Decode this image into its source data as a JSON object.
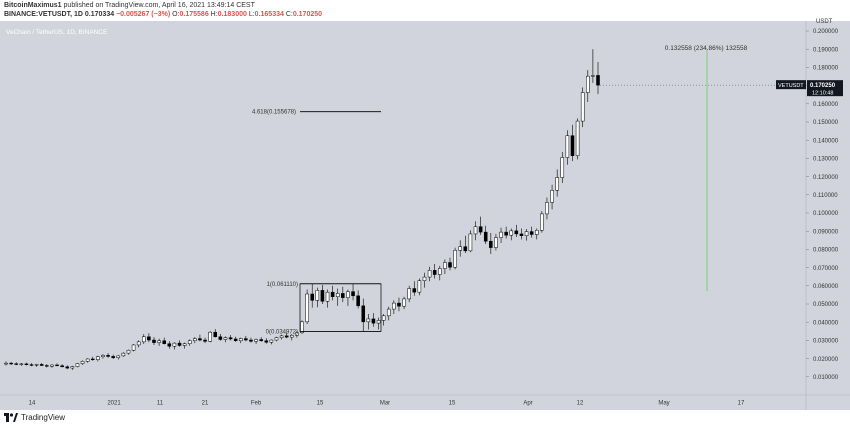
{
  "header": {
    "author": "BitcoinMaximus1",
    "published_on": "published on TradingView.com, April 16, 2021 13:49:14 CEST",
    "symbol_line": "BINANCE:VETUSDT, 1D",
    "last": "0.170334",
    "change": "−0.005267 (−3%)",
    "o": "0.175586",
    "h": "0.183000",
    "l": "0.165334",
    "c": "0.170250"
  },
  "footer": {
    "logo_text": "TradingView"
  },
  "chart_data": {
    "type": "candlestick",
    "title": "VeChain / TetherUS, 1D, BINANCE",
    "y_axis": {
      "unit": "USDT",
      "ticks": [
        "0.200000",
        "0.190000",
        "0.180000",
        "0.170000",
        "0.160000",
        "0.150000",
        "0.140000",
        "0.130000",
        "0.120000",
        "0.110000",
        "0.100000",
        "0.090000",
        "0.080000",
        "0.070000",
        "0.060000",
        "0.050000",
        "0.040000",
        "0.030000",
        "0.020000",
        "0.010000"
      ],
      "range": [
        0.0,
        0.205
      ]
    },
    "x_axis": {
      "ticks": [
        "14",
        "2021",
        "11",
        "21",
        "Feb",
        "15",
        "Mar",
        "15",
        "Apr",
        "12",
        "May",
        "17"
      ]
    },
    "current_price": {
      "symbol": "VETUSDT",
      "value": "0.170250",
      "countdown": "12:10:48"
    },
    "annotations": {
      "fib_1": "1(0.061110)",
      "fib_0": "0(0.034972)",
      "fib_4618": "4.618(0.155678)",
      "measure": "0.132558 (234.86%) 132558"
    },
    "levels": {
      "fib_1": 0.06111,
      "fib_0": 0.034972,
      "fib_4618": 0.155678
    },
    "measure_range": [
      0.057,
      0.19
    ],
    "candles": [
      [
        0.017,
        0.0185,
        0.0162,
        0.0175
      ],
      [
        0.0175,
        0.0182,
        0.0165,
        0.0172
      ],
      [
        0.0172,
        0.018,
        0.0164,
        0.0168
      ],
      [
        0.0168,
        0.0176,
        0.016,
        0.0171
      ],
      [
        0.0171,
        0.0178,
        0.0163,
        0.0167
      ],
      [
        0.0167,
        0.0175,
        0.0158,
        0.0164
      ],
      [
        0.0164,
        0.0172,
        0.0155,
        0.0168
      ],
      [
        0.0168,
        0.0176,
        0.016,
        0.0162
      ],
      [
        0.0162,
        0.017,
        0.0152,
        0.0158
      ],
      [
        0.0158,
        0.0168,
        0.015,
        0.0165
      ],
      [
        0.0165,
        0.0174,
        0.0158,
        0.0161
      ],
      [
        0.0161,
        0.0169,
        0.0152,
        0.0155
      ],
      [
        0.0155,
        0.0163,
        0.0142,
        0.0148
      ],
      [
        0.0148,
        0.016,
        0.0138,
        0.0156
      ],
      [
        0.0156,
        0.0175,
        0.0152,
        0.0172
      ],
      [
        0.0172,
        0.019,
        0.0165,
        0.0185
      ],
      [
        0.0185,
        0.0202,
        0.0178,
        0.0198
      ],
      [
        0.0198,
        0.021,
        0.0188,
        0.0194
      ],
      [
        0.0194,
        0.0215,
        0.0185,
        0.021
      ],
      [
        0.021,
        0.0225,
        0.02,
        0.0218
      ],
      [
        0.0218,
        0.023,
        0.0205,
        0.0212
      ],
      [
        0.0212,
        0.0222,
        0.0198,
        0.0205
      ],
      [
        0.0205,
        0.0218,
        0.0195,
        0.0215
      ],
      [
        0.0215,
        0.0235,
        0.021,
        0.023
      ],
      [
        0.023,
        0.025,
        0.0222,
        0.0246
      ],
      [
        0.0246,
        0.028,
        0.024,
        0.0275
      ],
      [
        0.0275,
        0.03,
        0.0262,
        0.0292
      ],
      [
        0.0292,
        0.0335,
        0.028,
        0.032
      ],
      [
        0.032,
        0.034,
        0.029,
        0.0302
      ],
      [
        0.0302,
        0.0318,
        0.0275,
        0.0288
      ],
      [
        0.0288,
        0.031,
        0.027,
        0.0298
      ],
      [
        0.0298,
        0.0315,
        0.0278,
        0.0282
      ],
      [
        0.0282,
        0.0296,
        0.0255,
        0.0268
      ],
      [
        0.0268,
        0.029,
        0.025,
        0.0285
      ],
      [
        0.0285,
        0.03,
        0.0265,
        0.0272
      ],
      [
        0.0272,
        0.0288,
        0.0255,
        0.0282
      ],
      [
        0.0282,
        0.0305,
        0.027,
        0.0298
      ],
      [
        0.0298,
        0.0318,
        0.0285,
        0.031
      ],
      [
        0.031,
        0.0332,
        0.0295,
        0.0302
      ],
      [
        0.0302,
        0.0315,
        0.0285,
        0.0295
      ],
      [
        0.0295,
        0.0352,
        0.029,
        0.0345
      ],
      [
        0.0345,
        0.0362,
        0.0315,
        0.032
      ],
      [
        0.032,
        0.0335,
        0.0298,
        0.0305
      ],
      [
        0.0305,
        0.0322,
        0.029,
        0.0315
      ],
      [
        0.0315,
        0.033,
        0.03,
        0.0308
      ],
      [
        0.0308,
        0.032,
        0.0292,
        0.0298
      ],
      [
        0.0298,
        0.0315,
        0.0285,
        0.031
      ],
      [
        0.031,
        0.0325,
        0.0295,
        0.0302
      ],
      [
        0.0302,
        0.0315,
        0.0288,
        0.0295
      ],
      [
        0.0295,
        0.031,
        0.028,
        0.0305
      ],
      [
        0.0305,
        0.0318,
        0.0292,
        0.0298
      ],
      [
        0.0298,
        0.0312,
        0.0282,
        0.029
      ],
      [
        0.029,
        0.0305,
        0.0278,
        0.0302
      ],
      [
        0.0302,
        0.032,
        0.0295,
        0.0315
      ],
      [
        0.0315,
        0.0332,
        0.0305,
        0.0325
      ],
      [
        0.0325,
        0.0345,
        0.0312,
        0.0318
      ],
      [
        0.0318,
        0.0335,
        0.03,
        0.0328
      ],
      [
        0.0328,
        0.035,
        0.0315,
        0.0342
      ],
      [
        0.0342,
        0.041,
        0.0335,
        0.0402
      ],
      [
        0.0402,
        0.058,
        0.039,
        0.0555
      ],
      [
        0.0555,
        0.0611,
        0.048,
        0.052
      ],
      [
        0.052,
        0.059,
        0.0482,
        0.0575
      ],
      [
        0.0575,
        0.0605,
        0.05,
        0.0515
      ],
      [
        0.0515,
        0.058,
        0.048,
        0.0565
      ],
      [
        0.0565,
        0.06,
        0.052,
        0.054
      ],
      [
        0.054,
        0.0585,
        0.049,
        0.0558
      ],
      [
        0.0558,
        0.0595,
        0.051,
        0.0535
      ],
      [
        0.0535,
        0.058,
        0.049,
        0.0568
      ],
      [
        0.0568,
        0.061,
        0.052,
        0.0545
      ],
      [
        0.0545,
        0.0575,
        0.0475,
        0.049
      ],
      [
        0.049,
        0.053,
        0.035,
        0.0402
      ],
      [
        0.0402,
        0.0445,
        0.036,
        0.0418
      ],
      [
        0.0418,
        0.045,
        0.0375,
        0.0395
      ],
      [
        0.0395,
        0.0425,
        0.036,
        0.041
      ],
      [
        0.041,
        0.0445,
        0.0382,
        0.0435
      ],
      [
        0.0435,
        0.0485,
        0.041,
        0.0472
      ],
      [
        0.0472,
        0.052,
        0.0445,
        0.0505
      ],
      [
        0.0505,
        0.0535,
        0.046,
        0.0488
      ],
      [
        0.0488,
        0.054,
        0.0472,
        0.0528
      ],
      [
        0.0528,
        0.06,
        0.051,
        0.0585
      ],
      [
        0.0585,
        0.0625,
        0.0545,
        0.0565
      ],
      [
        0.0565,
        0.064,
        0.0548,
        0.0628
      ],
      [
        0.0628,
        0.0672,
        0.059,
        0.0648
      ],
      [
        0.0648,
        0.0705,
        0.0625,
        0.0685
      ],
      [
        0.0685,
        0.072,
        0.064,
        0.0662
      ],
      [
        0.0662,
        0.071,
        0.063,
        0.0695
      ],
      [
        0.0695,
        0.0745,
        0.0665,
        0.0728
      ],
      [
        0.0728,
        0.0755,
        0.0685,
        0.0702
      ],
      [
        0.0702,
        0.081,
        0.069,
        0.0795
      ],
      [
        0.0795,
        0.085,
        0.076,
        0.0815
      ],
      [
        0.0815,
        0.0875,
        0.078,
        0.0792
      ],
      [
        0.0792,
        0.0905,
        0.0785,
        0.0885
      ],
      [
        0.0885,
        0.0955,
        0.085,
        0.0925
      ],
      [
        0.0925,
        0.098,
        0.088,
        0.0895
      ],
      [
        0.0895,
        0.093,
        0.083,
        0.0845
      ],
      [
        0.0845,
        0.089,
        0.0775,
        0.081
      ],
      [
        0.081,
        0.0885,
        0.0795,
        0.0865
      ],
      [
        0.0865,
        0.092,
        0.0835,
        0.0895
      ],
      [
        0.0895,
        0.0925,
        0.086,
        0.0878
      ],
      [
        0.0878,
        0.0915,
        0.085,
        0.0902
      ],
      [
        0.0902,
        0.0935,
        0.0868,
        0.0885
      ],
      [
        0.0885,
        0.0915,
        0.0855,
        0.0875
      ],
      [
        0.0875,
        0.0912,
        0.0848,
        0.0898
      ],
      [
        0.0898,
        0.0925,
        0.0865,
        0.0882
      ],
      [
        0.0882,
        0.0915,
        0.0855,
        0.0905
      ],
      [
        0.0905,
        0.101,
        0.0892,
        0.0995
      ],
      [
        0.0995,
        0.1085,
        0.0965,
        0.1058
      ],
      [
        0.1058,
        0.1155,
        0.102,
        0.1125
      ],
      [
        0.1125,
        0.124,
        0.109,
        0.1195
      ],
      [
        0.1195,
        0.1335,
        0.1165,
        0.1305
      ],
      [
        0.1305,
        0.1455,
        0.1265,
        0.1425
      ],
      [
        0.1425,
        0.1485,
        0.1285,
        0.1315
      ],
      [
        0.1315,
        0.152,
        0.1295,
        0.1505
      ],
      [
        0.1505,
        0.169,
        0.1472,
        0.1662
      ],
      [
        0.1662,
        0.1785,
        0.161,
        0.1752
      ],
      [
        0.1752,
        0.19,
        0.1715,
        0.1756
      ],
      [
        0.1756,
        0.183,
        0.1653,
        0.17025
      ]
    ]
  }
}
